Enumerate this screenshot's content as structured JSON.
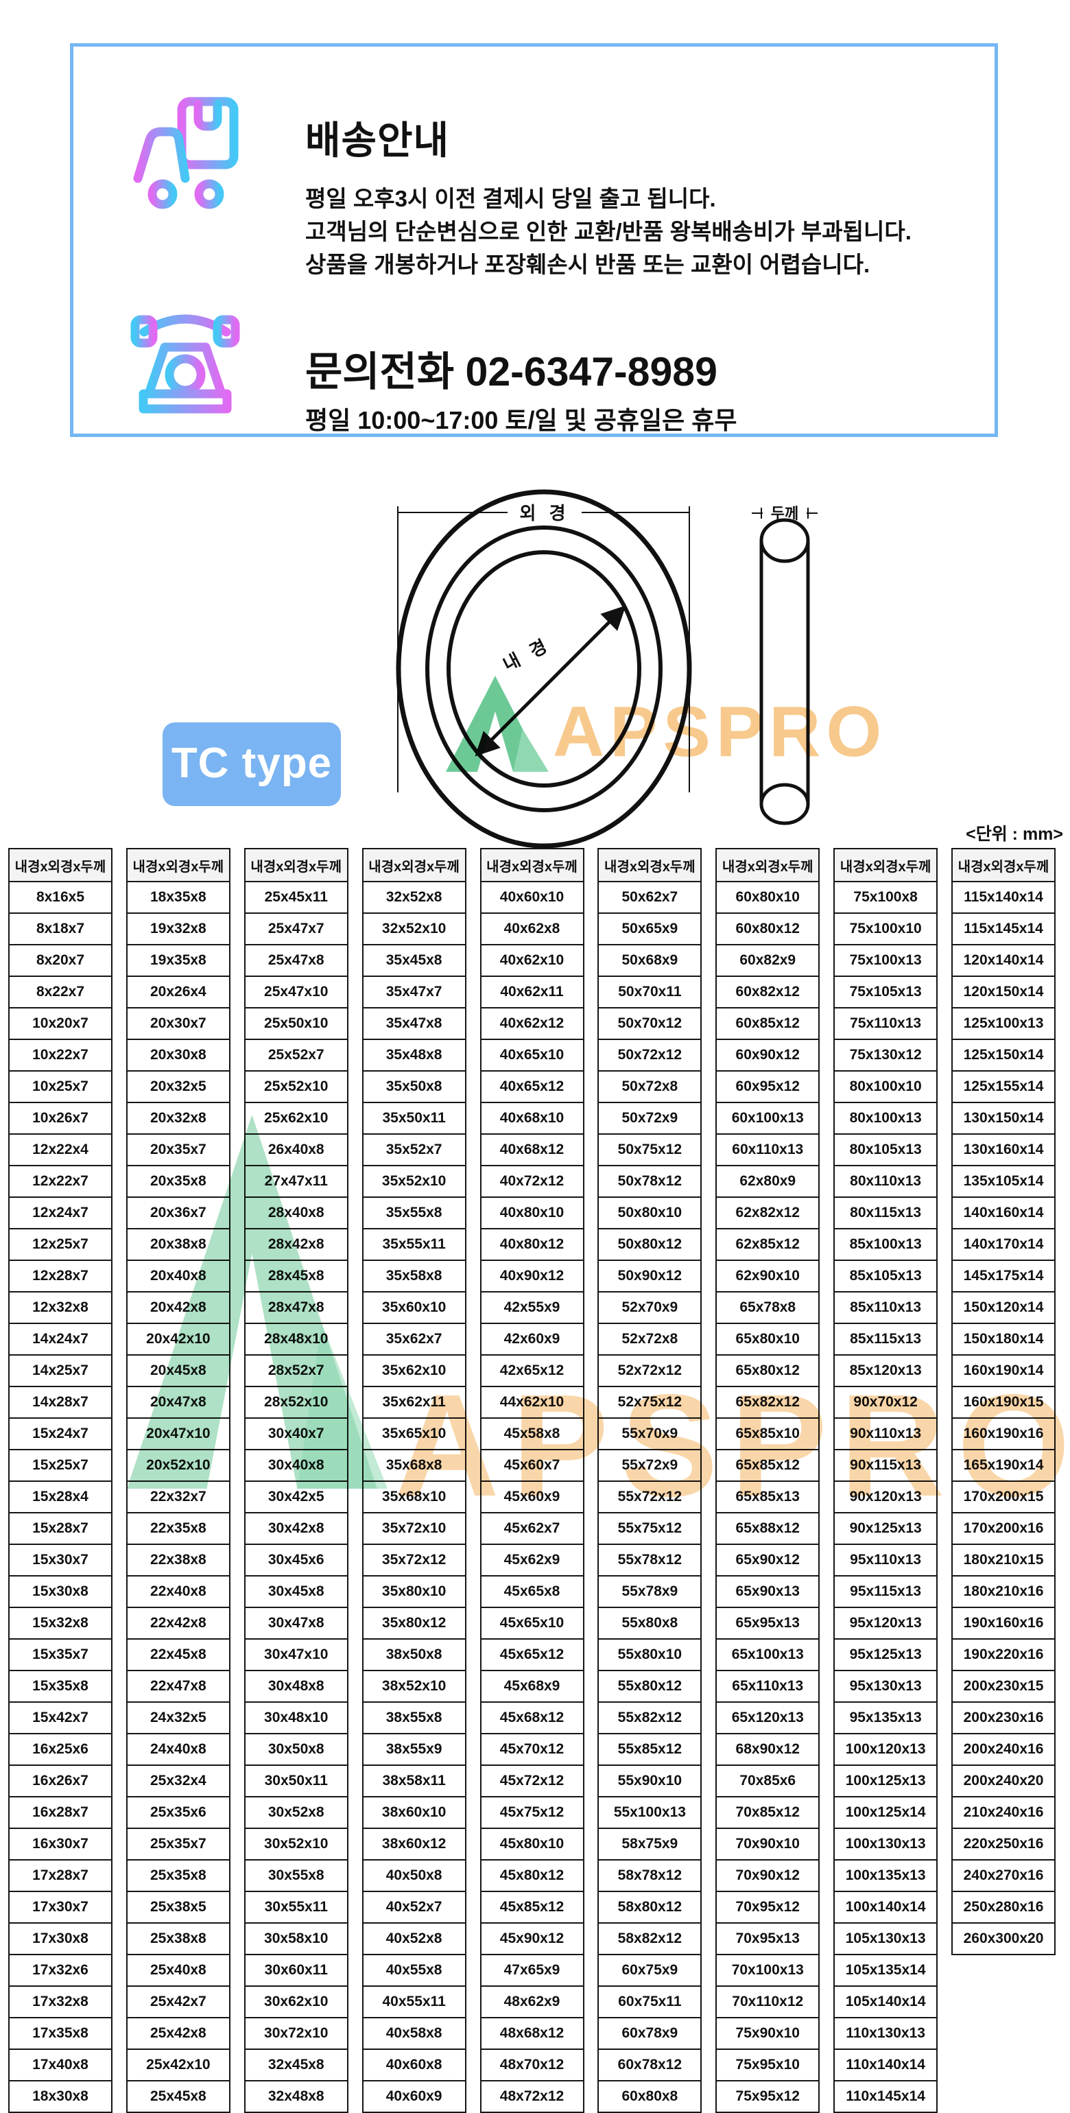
{
  "colors": {
    "accent_blue": "#74b7f3",
    "accent_badge": "#7ab4f2",
    "wm_orange": "#f7c98c",
    "wm_green": "#6cc996",
    "grad_magenta": "#e06bf2",
    "grad_cyan": "#45c8f5"
  },
  "banner": {
    "title": "배송안내",
    "lines": [
      "평일 오후3시 이전 결제시 당일 출고 됩니다.",
      "고객님의 단순변심으로 인한 교환/반품 왕복배송비가 부과됩니다.",
      "상품을 개봉하거나 포장훼손시 반품 또는 교환이 어렵습니다."
    ],
    "phone_title": "문의전화  02-6347-8989",
    "phone_hours": "평일 10:00~17:00 토/일 및 공휴일은 휴무",
    "truck_icon": "truck-with-package-icon",
    "phone_icon": "rotary-telephone-icon"
  },
  "diagram": {
    "outer_diameter_label": "외 경",
    "inner_diameter_label": "내 경",
    "thickness_label": "두께",
    "type_badge": "TC type",
    "watermark": "APSPRO"
  },
  "table": {
    "unit_note": "<단위 : mm>",
    "header": "내경x외경x두께",
    "columns": [
      [
        "8x16x5",
        "8x18x7",
        "8x20x7",
        "8x22x7",
        "10x20x7",
        "10x22x7",
        "10x25x7",
        "10x26x7",
        "12x22x4",
        "12x22x7",
        "12x24x7",
        "12x25x7",
        "12x28x7",
        "12x32x8",
        "14x24x7",
        "14x25x7",
        "14x28x7",
        "15x24x7",
        "15x25x7",
        "15x28x4",
        "15x28x7",
        "15x30x7",
        "15x30x8",
        "15x32x8",
        "15x35x7",
        "15x35x8",
        "15x42x7",
        "16x25x6",
        "16x26x7",
        "16x28x7",
        "16x30x7",
        "17x28x7",
        "17x30x7",
        "17x30x8",
        "17x32x6",
        "17x32x8",
        "17x35x8",
        "17x40x8",
        "18x30x8"
      ],
      [
        "18x35x8",
        "19x32x8",
        "19x35x8",
        "20x26x4",
        "20x30x7",
        "20x30x8",
        "20x32x5",
        "20x32x8",
        "20x35x7",
        "20x35x8",
        "20x36x7",
        "20x38x8",
        "20x40x8",
        "20x42x8",
        "20x42x10",
        "20x45x8",
        "20x47x8",
        "20x47x10",
        "20x52x10",
        "22x32x7",
        "22x35x8",
        "22x38x8",
        "22x40x8",
        "22x42x8",
        "22x45x8",
        "22x47x8",
        "24x32x5",
        "24x40x8",
        "25x32x4",
        "25x35x6",
        "25x35x7",
        "25x35x8",
        "25x38x5",
        "25x38x8",
        "25x40x8",
        "25x42x7",
        "25x42x8",
        "25x42x10",
        "25x45x8"
      ],
      [
        "25x45x11",
        "25x47x7",
        "25x47x8",
        "25x47x10",
        "25x50x10",
        "25x52x7",
        "25x52x10",
        "25x62x10",
        "26x40x8",
        "27x47x11",
        "28x40x8",
        "28x42x8",
        "28x45x8",
        "28x47x8",
        "28x48x10",
        "28x52x7",
        "28x52x10",
        "30x40x7",
        "30x40x8",
        "30x42x5",
        "30x42x8",
        "30x45x6",
        "30x45x8",
        "30x47x8",
        "30x47x10",
        "30x48x8",
        "30x48x10",
        "30x50x8",
        "30x50x11",
        "30x52x8",
        "30x52x10",
        "30x55x8",
        "30x55x11",
        "30x58x10",
        "30x60x11",
        "30x62x10",
        "30x72x10",
        "32x45x8",
        "32x48x8"
      ],
      [
        "32x52x8",
        "32x52x10",
        "35x45x8",
        "35x47x7",
        "35x47x8",
        "35x48x8",
        "35x50x8",
        "35x50x11",
        "35x52x7",
        "35x52x10",
        "35x55x8",
        "35x55x11",
        "35x58x8",
        "35x60x10",
        "35x62x7",
        "35x62x10",
        "35x62x11",
        "35x65x10",
        "35x68x8",
        "35x68x10",
        "35x72x10",
        "35x72x12",
        "35x80x10",
        "35x80x12",
        "38x50x8",
        "38x52x10",
        "38x55x8",
        "38x55x9",
        "38x58x11",
        "38x60x10",
        "38x60x12",
        "40x50x8",
        "40x52x7",
        "40x52x8",
        "40x55x8",
        "40x55x11",
        "40x58x8",
        "40x60x8",
        "40x60x9"
      ],
      [
        "40x60x10",
        "40x62x8",
        "40x62x10",
        "40x62x11",
        "40x62x12",
        "40x65x10",
        "40x65x12",
        "40x68x10",
        "40x68x12",
        "40x72x12",
        "40x80x10",
        "40x80x12",
        "40x90x12",
        "42x55x9",
        "42x60x9",
        "42x65x12",
        "44x62x10",
        "45x58x8",
        "45x60x7",
        "45x60x9",
        "45x62x7",
        "45x62x9",
        "45x65x8",
        "45x65x10",
        "45x65x12",
        "45x68x9",
        "45x68x12",
        "45x70x12",
        "45x72x12",
        "45x75x12",
        "45x80x10",
        "45x80x12",
        "45x85x12",
        "45x90x12",
        "47x65x9",
        "48x62x9",
        "48x68x12",
        "48x70x12",
        "48x72x12"
      ],
      [
        "50x62x7",
        "50x65x9",
        "50x68x9",
        "50x70x11",
        "50x70x12",
        "50x72x12",
        "50x72x8",
        "50x72x9",
        "50x75x12",
        "50x78x12",
        "50x80x10",
        "50x80x12",
        "50x90x12",
        "52x70x9",
        "52x72x8",
        "52x72x12",
        "52x75x12",
        "55x70x9",
        "55x72x9",
        "55x72x12",
        "55x75x12",
        "55x78x12",
        "55x78x9",
        "55x80x8",
        "55x80x10",
        "55x80x12",
        "55x82x12",
        "55x85x12",
        "55x90x10",
        "55x100x13",
        "58x75x9",
        "58x78x12",
        "58x80x12",
        "58x82x12",
        "60x75x9",
        "60x75x11",
        "60x78x9",
        "60x78x12",
        "60x80x8"
      ],
      [
        "60x80x10",
        "60x80x12",
        "60x82x9",
        "60x82x12",
        "60x85x12",
        "60x90x12",
        "60x95x12",
        "60x100x13",
        "60x110x13",
        "62x80x9",
        "62x82x12",
        "62x85x12",
        "62x90x10",
        "65x78x8",
        "65x80x10",
        "65x80x12",
        "65x82x12",
        "65x85x10",
        "65x85x12",
        "65x85x13",
        "65x88x12",
        "65x90x12",
        "65x90x13",
        "65x95x13",
        "65x100x13",
        "65x110x13",
        "65x120x13",
        "68x90x12",
        "70x85x6",
        "70x85x12",
        "70x90x10",
        "70x90x12",
        "70x95x12",
        "70x95x13",
        "70x100x13",
        "70x110x12",
        "75x90x10",
        "75x95x10",
        "75x95x12"
      ],
      [
        "75x100x8",
        "75x100x10",
        "75x100x13",
        "75x105x13",
        "75x110x13",
        "75x130x12",
        "80x100x10",
        "80x100x13",
        "80x105x13",
        "80x110x13",
        "80x115x13",
        "85x100x13",
        "85x105x13",
        "85x110x13",
        "85x115x13",
        "85x120x13",
        "90x70x12",
        "90x110x13",
        "90x115x13",
        "90x120x13",
        "90x125x13",
        "95x110x13",
        "95x115x13",
        "95x120x13",
        "95x125x13",
        "95x130x13",
        "95x135x13",
        "100x120x13",
        "100x125x13",
        "100x125x14",
        "100x130x13",
        "100x135x13",
        "100x140x14",
        "105x130x13",
        "105x135x14",
        "105x140x14",
        "110x130x13",
        "110x140x14",
        "110x145x14"
      ],
      [
        "115x140x14",
        "115x145x14",
        "120x140x14",
        "120x150x14",
        "125x100x13",
        "125x150x14",
        "125x155x14",
        "130x150x14",
        "130x160x14",
        "135x105x14",
        "140x160x14",
        "140x170x14",
        "145x175x14",
        "150x120x14",
        "150x180x14",
        "160x190x14",
        "160x190x15",
        "160x190x16",
        "165x190x14",
        "170x200x15",
        "170x200x16",
        "180x210x15",
        "180x210x16",
        "190x160x16",
        "190x220x16",
        "200x230x15",
        "200x230x16",
        "200x240x16",
        "200x240x20",
        "210x240x16",
        "220x250x16",
        "240x270x16",
        "250x280x16",
        "260x300x20"
      ]
    ]
  }
}
